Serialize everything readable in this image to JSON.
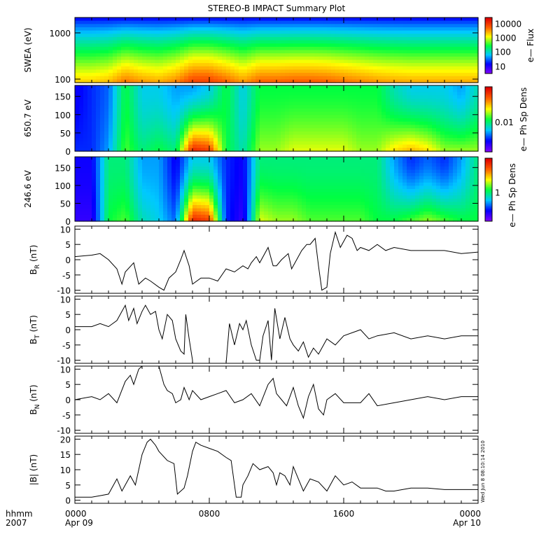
{
  "title": "STEREO-B IMPACT Summary Plot",
  "x_axis": {
    "row1_label": "hhmm",
    "row2_label": "2007",
    "ticks": [
      {
        "hour": 0,
        "time": "0000",
        "date": "Apr 09"
      },
      {
        "hour": 8,
        "time": "0800",
        "date": ""
      },
      {
        "hour": 16,
        "time": "1600",
        "date": ""
      },
      {
        "hour": 24,
        "time": "0000",
        "date": "Apr 10"
      }
    ],
    "minor_every_hours": 1
  },
  "timestamp": "Wed Jun  8 08:10:14 2010",
  "colors": {
    "palette": [
      "#7f00ff",
      "#0000ff",
      "#00c8ff",
      "#00ff40",
      "#ffff00",
      "#ff6000",
      "#e00000"
    ]
  },
  "chart_data": [
    {
      "type": "heatmap",
      "name": "swea",
      "ylabel": "SWEA (eV)",
      "yscale": "log",
      "ylim": [
        84,
        2150
      ],
      "yticks": [
        {
          "v": 100,
          "label": "100"
        },
        {
          "v": 1000,
          "label": "1000"
        }
      ],
      "colorbar": {
        "title": "e— Flux",
        "ticks": [
          {
            "f": 0.12,
            "label": "10"
          },
          {
            "f": 0.38,
            "label": "100"
          },
          {
            "f": 0.63,
            "label": "1000"
          },
          {
            "f": 0.88,
            "label": "10000"
          }
        ]
      },
      "hours": [
        0,
        1,
        2,
        3,
        4,
        5,
        6,
        7,
        8,
        9,
        10,
        11,
        12,
        13,
        14,
        15,
        16,
        17,
        18,
        19,
        20,
        21,
        22,
        23,
        24
      ],
      "activity": [
        0.3,
        0.3,
        0.35,
        0.55,
        0.45,
        0.4,
        0.5,
        0.72,
        0.72,
        0.6,
        0.45,
        0.6,
        0.6,
        0.62,
        0.62,
        0.6,
        0.55,
        0.5,
        0.45,
        0.42,
        0.4,
        0.4,
        0.4,
        0.4,
        0.4
      ]
    },
    {
      "type": "heatmap",
      "name": "pad-650",
      "ylabel": "650.7 eV",
      "ylim": [
        0,
        180
      ],
      "yticks": [
        {
          "v": 0,
          "label": "0"
        },
        {
          "v": 50,
          "label": "50"
        },
        {
          "v": 100,
          "label": "100"
        },
        {
          "v": 150,
          "label": "150"
        }
      ],
      "colorbar": {
        "title": "e— Ph Sp Dens",
        "ticks": [
          {
            "f": 0.45,
            "label": "0.01"
          }
        ]
      },
      "hours": [
        0,
        1,
        2,
        3,
        4,
        5,
        6,
        7,
        8,
        9,
        10,
        11,
        12,
        13,
        14,
        15,
        16,
        17,
        18,
        19,
        20,
        21,
        22,
        23,
        24
      ],
      "low_angle": [
        0.2,
        0.2,
        0.3,
        0.55,
        0.45,
        0.5,
        0.45,
        0.95,
        0.9,
        0.5,
        0.4,
        0.6,
        0.6,
        0.65,
        0.65,
        0.65,
        0.65,
        0.6,
        0.6,
        0.7,
        0.75,
        0.7,
        0.6,
        0.6,
        0.6
      ],
      "high_angle": [
        0.15,
        0.2,
        0.25,
        0.5,
        0.35,
        0.35,
        0.3,
        0.3,
        0.35,
        0.5,
        0.35,
        0.5,
        0.5,
        0.5,
        0.5,
        0.5,
        0.5,
        0.5,
        0.5,
        0.4,
        0.35,
        0.35,
        0.35,
        0.3,
        0.4
      ]
    },
    {
      "type": "heatmap",
      "name": "pad-246",
      "ylabel": "246.6 eV",
      "ylim": [
        0,
        180
      ],
      "yticks": [
        {
          "v": 0,
          "label": "0"
        },
        {
          "v": 50,
          "label": "50"
        },
        {
          "v": 100,
          "label": "100"
        },
        {
          "v": 150,
          "label": "150"
        }
      ],
      "colorbar": {
        "title": "e— Ph Sp Dens",
        "ticks": [
          {
            "f": 0.45,
            "label": "1"
          }
        ]
      },
      "hours": [
        0,
        1,
        2,
        3,
        4,
        5,
        6,
        7,
        8,
        9,
        10,
        11,
        12,
        13,
        14,
        15,
        16,
        17,
        18,
        19,
        20,
        21,
        22,
        23,
        24
      ],
      "low_angle": [
        0.1,
        0.1,
        0.5,
        0.55,
        0.4,
        0.35,
        0.25,
        0.95,
        0.9,
        0.2,
        0.1,
        0.65,
        0.6,
        0.6,
        0.55,
        0.55,
        0.55,
        0.55,
        0.5,
        0.5,
        0.55,
        0.6,
        0.55,
        0.5,
        0.5
      ],
      "high_angle": [
        0.15,
        0.15,
        0.45,
        0.45,
        0.3,
        0.3,
        0.15,
        0.35,
        0.35,
        0.2,
        0.15,
        0.45,
        0.45,
        0.45,
        0.45,
        0.45,
        0.45,
        0.45,
        0.45,
        0.3,
        0.2,
        0.25,
        0.2,
        0.3,
        0.45
      ]
    },
    {
      "type": "line",
      "name": "br",
      "ylabel": {
        "main": "B",
        "sub": "R",
        "unit": " (nT)"
      },
      "ylim": [
        -11,
        11
      ],
      "yticks": [
        {
          "v": -10,
          "label": "-10"
        },
        {
          "v": -5,
          "label": "-5"
        },
        {
          "v": 0,
          "label": "0"
        },
        {
          "v": 5,
          "label": "5"
        },
        {
          "v": 10,
          "label": "10"
        }
      ],
      "x": [
        0,
        1,
        1.5,
        2,
        2.5,
        2.8,
        3,
        3.5,
        3.8,
        4.2,
        4.5,
        5,
        5.3,
        5.6,
        6,
        6.3,
        6.5,
        6.8,
        7,
        7.5,
        8,
        8.5,
        9,
        9.5,
        10,
        10.3,
        10.5,
        10.8,
        11,
        11.5,
        11.8,
        12,
        12.3,
        12.7,
        12.9,
        13.2,
        13.5,
        13.8,
        14,
        14.3,
        14.5,
        14.7,
        15,
        15.2,
        15.5,
        15.8,
        16.2,
        16.5,
        16.8,
        17,
        17.5,
        18,
        18.5,
        19,
        20,
        21,
        22,
        23,
        24
      ],
      "y": [
        1,
        1.5,
        2,
        0,
        -3,
        -8,
        -4,
        -1,
        -8,
        -6,
        -7,
        -9,
        -10,
        -6,
        -4,
        0,
        3,
        -2,
        -8,
        -6,
        -6,
        -7,
        -3,
        -4,
        -2,
        -3,
        -1,
        1,
        -1,
        4,
        -2,
        -2,
        0,
        2,
        -3,
        0,
        3,
        5,
        5,
        7,
        -2,
        -10,
        -9,
        2,
        9,
        4,
        8,
        7,
        3,
        4,
        3,
        5,
        3,
        4,
        3,
        3,
        3,
        2,
        2.5
      ]
    },
    {
      "type": "line",
      "name": "bt",
      "ylabel": {
        "main": "B",
        "sub": "T",
        "unit": " (nT)"
      },
      "ylim": [
        -11,
        11
      ],
      "yticks": [
        {
          "v": -10,
          "label": "-10"
        },
        {
          "v": -5,
          "label": "-5"
        },
        {
          "v": 0,
          "label": "0"
        },
        {
          "v": 5,
          "label": "5"
        },
        {
          "v": 10,
          "label": "10"
        }
      ],
      "x": [
        0,
        1,
        1.5,
        2,
        2.5,
        2.8,
        3,
        3.2,
        3.5,
        3.7,
        4,
        4.2,
        4.5,
        4.8,
        5,
        5.2,
        5.5,
        5.8,
        6,
        6.3,
        6.5,
        6.6,
        6.8,
        7,
        7.01,
        9,
        9.2,
        9.5,
        9.8,
        10,
        10.2,
        10.5,
        10.8,
        11,
        11.2,
        11.5,
        11.7,
        11.9,
        12.2,
        12.5,
        12.8,
        13,
        13.3,
        13.6,
        13.9,
        14.2,
        14.5,
        15,
        15.5,
        16,
        17,
        17.5,
        18,
        19,
        20,
        21,
        22,
        23,
        24
      ],
      "y": [
        1,
        1,
        2,
        1,
        3,
        6,
        8,
        3,
        7,
        2,
        6,
        8,
        5,
        6,
        0,
        -3,
        5,
        3,
        -3,
        -7,
        -8,
        5,
        -3,
        -10,
        -11,
        -11,
        2,
        -5,
        2,
        0,
        3,
        -5,
        -10,
        -10,
        -2,
        3,
        -10,
        7,
        -3,
        4,
        -3,
        -5,
        -7,
        -4,
        -9,
        -6,
        -8,
        -3,
        -5,
        -2,
        0,
        -3,
        -2,
        -1,
        -3,
        -2,
        -3,
        -2,
        -2
      ]
    },
    {
      "type": "line",
      "name": "bn",
      "ylabel": {
        "main": "B",
        "sub": "N",
        "unit": " (nT)"
      },
      "ylim": [
        -11,
        11
      ],
      "yticks": [
        {
          "v": -10,
          "label": "-10"
        },
        {
          "v": -5,
          "label": "-5"
        },
        {
          "v": 0,
          "label": "0"
        },
        {
          "v": 5,
          "label": "5"
        },
        {
          "v": 10,
          "label": "10"
        }
      ],
      "x": [
        0,
        1,
        1.5,
        2,
        2.5,
        3,
        3.3,
        3.5,
        3.8,
        4,
        5,
        5.3,
        5.5,
        5.8,
        6,
        6.3,
        6.5,
        6.8,
        7,
        7.5,
        8,
        8.5,
        9,
        9.5,
        10,
        10.5,
        11,
        11.5,
        11.8,
        12,
        12.3,
        12.6,
        13,
        13.3,
        13.6,
        13.9,
        14.2,
        14.5,
        14.8,
        15,
        15.5,
        16,
        17,
        17.5,
        18,
        19,
        20,
        21,
        22,
        23,
        24
      ],
      "y": [
        0,
        1,
        0,
        2,
        -1,
        6,
        8,
        5,
        10,
        11,
        11,
        5,
        3,
        2,
        -1,
        0,
        4,
        0,
        3,
        0,
        1,
        2,
        3,
        -1,
        0,
        2,
        -2,
        5,
        7,
        2,
        0,
        -2,
        4,
        -2,
        -6,
        1,
        5,
        -3,
        -5,
        0,
        2,
        -1,
        -1,
        2,
        -2,
        -1,
        0,
        1,
        0,
        1,
        1
      ]
    },
    {
      "type": "line",
      "name": "bmag",
      "ylabel": {
        "main": "|B|",
        "sub": "",
        "unit": " (nT)"
      },
      "ylim": [
        -1,
        21
      ],
      "yticks": [
        {
          "v": 0,
          "label": "0"
        },
        {
          "v": 5,
          "label": "5"
        },
        {
          "v": 10,
          "label": "10"
        },
        {
          "v": 15,
          "label": "15"
        },
        {
          "v": 20,
          "label": "20"
        }
      ],
      "x": [
        0,
        1,
        1.5,
        2,
        2.5,
        2.8,
        3,
        3.3,
        3.6,
        3.8,
        4,
        4.3,
        4.5,
        4.8,
        5,
        5.5,
        5.9,
        6.1,
        6.5,
        6.7,
        7,
        7.2,
        7.5,
        8,
        8.5,
        9,
        9.3,
        9.6,
        9.9,
        10,
        10.3,
        10.6,
        11,
        11.5,
        11.8,
        12,
        12.2,
        12.5,
        12.8,
        13,
        13.3,
        13.6,
        14,
        14.5,
        15,
        15.5,
        16,
        16.5,
        17,
        18,
        18.5,
        19,
        20,
        21,
        22,
        23,
        24
      ],
      "y": [
        1,
        1,
        1.5,
        2,
        7,
        3,
        5,
        8,
        5,
        10,
        15,
        19,
        20,
        18,
        16,
        13,
        12,
        2,
        4,
        8,
        16,
        19,
        18,
        17,
        16,
        14,
        13,
        1,
        1,
        5,
        8,
        12,
        10,
        11,
        9,
        5,
        9,
        8,
        5,
        11,
        7,
        3,
        7,
        6,
        3,
        8,
        5,
        6,
        4,
        4,
        3,
        3,
        4,
        4,
        3.5,
        3.5,
        3.5
      ]
    }
  ]
}
